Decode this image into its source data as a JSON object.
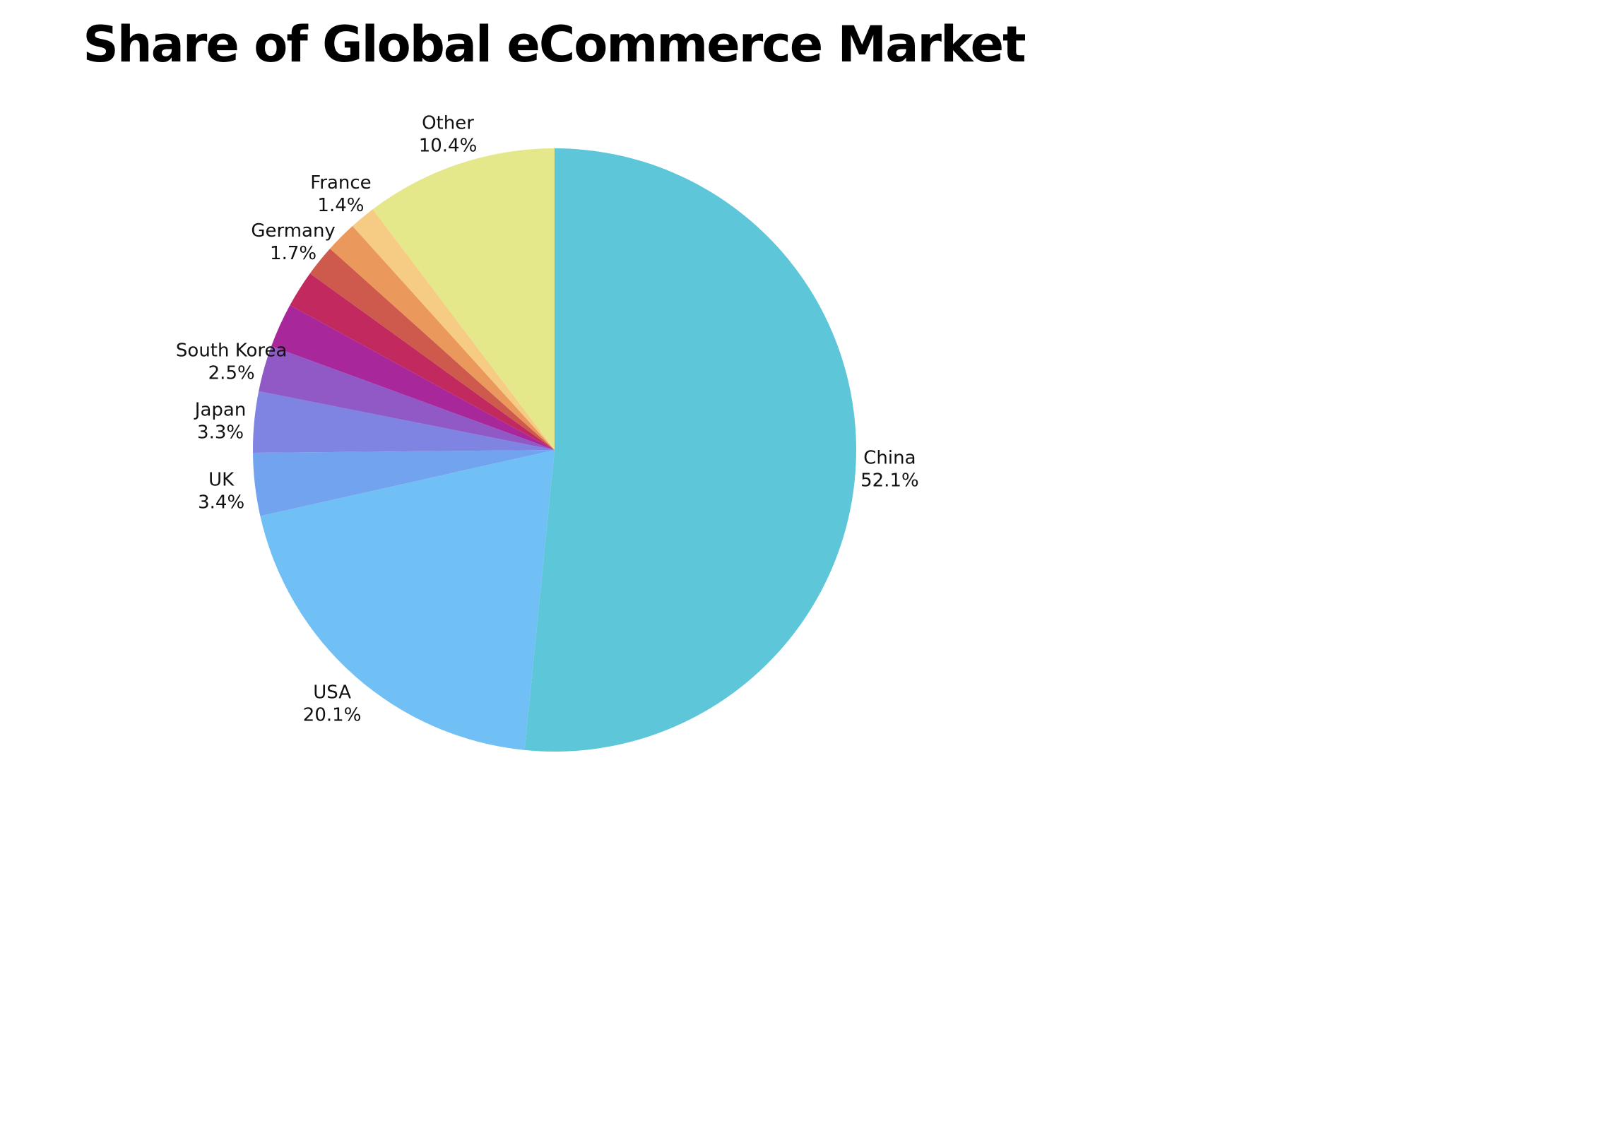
{
  "chart_data": {
    "type": "pie",
    "title": "Share of Global eCommerce Market",
    "slices": [
      {
        "label": "China",
        "value": 52.1,
        "display": "52.1%",
        "color": "#5ec6d9"
      },
      {
        "label": "USA",
        "value": 20.1,
        "display": "20.1%",
        "color": "#70bff5"
      },
      {
        "label": "UK",
        "value": 3.4,
        "display": "3.4%",
        "color": "#72a3ef"
      },
      {
        "label": "Japan",
        "value": 3.3,
        "display": "3.3%",
        "color": "#7f83e2"
      },
      {
        "label": "South Korea",
        "value": 2.5,
        "display": "2.5%",
        "color": "#9159c6"
      },
      {
        "label": "",
        "value": 2.4,
        "display": "",
        "color": "#a8289c"
      },
      {
        "label": "",
        "value": 2.0,
        "display": "",
        "color": "#c22a5f"
      },
      {
        "label": "Germany",
        "value": 1.7,
        "display": "1.7%",
        "color": "#cd5a4c"
      },
      {
        "label": "",
        "value": 1.7,
        "display": "",
        "color": "#ea985c"
      },
      {
        "label": "France",
        "value": 1.4,
        "display": "1.4%",
        "color": "#f6cc85"
      },
      {
        "label": "Other",
        "value": 10.4,
        "display": "10.4%",
        "color": "#e4e78a"
      }
    ],
    "start": "12 o'clock",
    "direction": "clockwise",
    "legend": "none",
    "labels": "outside slices"
  }
}
